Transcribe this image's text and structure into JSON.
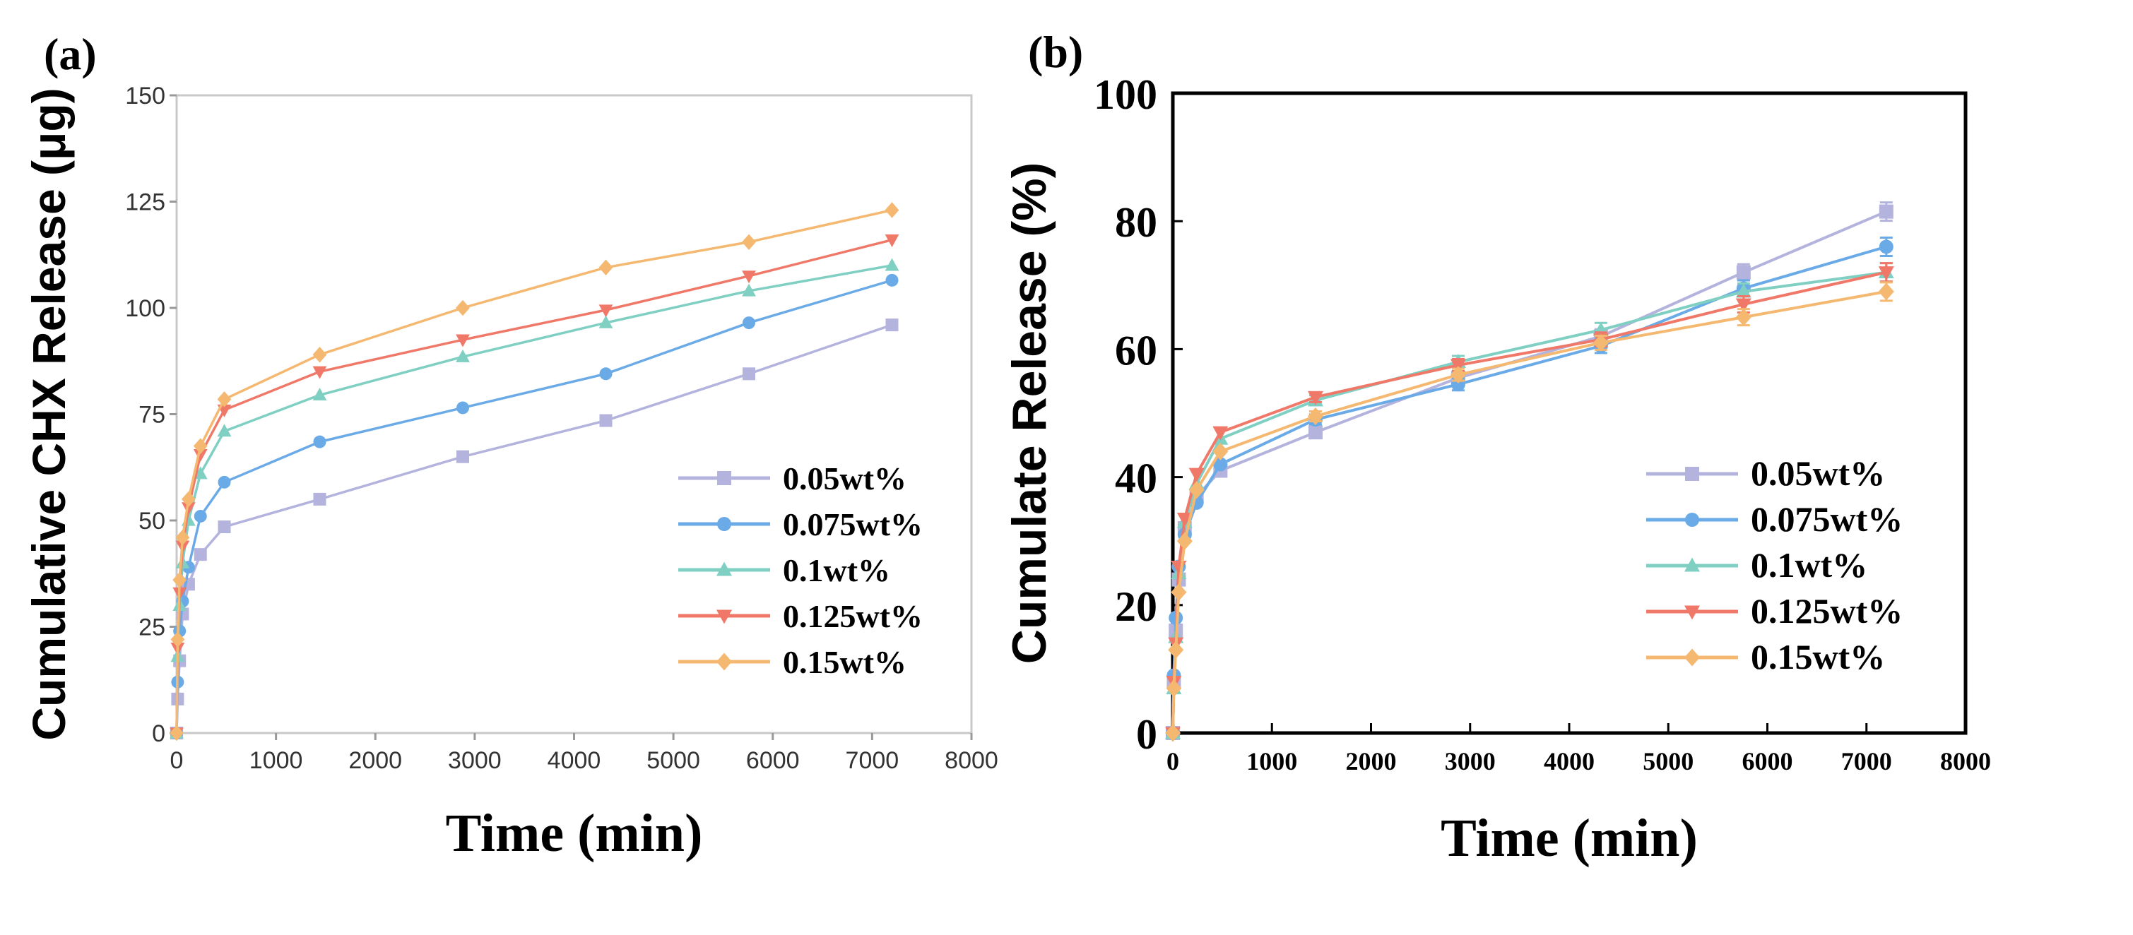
{
  "chart_data": [
    {
      "type": "line",
      "panel_label": "(a)",
      "title": "",
      "xlabel": "Time (min)",
      "ylabel": "Cumulative CHX Release (μg)",
      "xlim": [
        0,
        8000
      ],
      "ylim": [
        0,
        150
      ],
      "xticks": [
        0,
        1000,
        2000,
        3000,
        4000,
        5000,
        6000,
        7000,
        8000
      ],
      "yticks": [
        0,
        25,
        50,
        75,
        100,
        125,
        150
      ],
      "x": [
        0,
        10,
        30,
        60,
        120,
        240,
        480,
        1440,
        2880,
        4320,
        5760,
        7200
      ],
      "legend_position": "bottom-right",
      "series": [
        {
          "name": "0.05wt%",
          "color": "#b3b3dd",
          "marker": "square",
          "values": [
            0,
            8,
            17,
            28,
            35,
            42,
            48.5,
            55,
            65,
            73.5,
            84.5,
            96
          ]
        },
        {
          "name": "0.075wt%",
          "color": "#6aaae6",
          "marker": "circle",
          "values": [
            0,
            12,
            24,
            31,
            39,
            51,
            59,
            68.5,
            76.5,
            84.5,
            96.5,
            106.5
          ]
        },
        {
          "name": "0.1wt%",
          "color": "#7fcfc3",
          "marker": "triangle-up",
          "values": [
            0,
            18,
            30,
            40,
            50,
            61,
            71,
            79.5,
            88.5,
            96.5,
            104,
            110
          ]
        },
        {
          "name": "0.125wt%",
          "color": "#f07868",
          "marker": "triangle-down",
          "values": [
            0,
            20,
            33,
            44,
            53,
            65.5,
            76,
            85,
            92.5,
            99.5,
            107.5,
            116
          ]
        },
        {
          "name": "0.15wt%",
          "color": "#f5b870",
          "marker": "diamond",
          "values": [
            0,
            22,
            36,
            46,
            55,
            67.5,
            78.5,
            89,
            100,
            109.5,
            115.5,
            123
          ]
        }
      ]
    },
    {
      "type": "line",
      "panel_label": "(b)",
      "title": "",
      "xlabel": "Time (min)",
      "ylabel": "Cumulate Release (%)",
      "xlim": [
        0,
        8000
      ],
      "ylim": [
        0,
        100
      ],
      "xticks": [
        0,
        1000,
        2000,
        3000,
        4000,
        5000,
        6000,
        7000,
        8000
      ],
      "yticks": [
        0,
        20,
        40,
        60,
        80,
        100
      ],
      "x": [
        0,
        10,
        30,
        60,
        120,
        240,
        480,
        1440,
        2880,
        4320,
        5760,
        7200
      ],
      "legend_position": "bottom-right",
      "series": [
        {
          "name": "0.05wt%",
          "color": "#b3b3dd",
          "marker": "square",
          "values": [
            0,
            8,
            16,
            24,
            32,
            37,
            41,
            47,
            55.5,
            62,
            72,
            81.5
          ]
        },
        {
          "name": "0.075wt%",
          "color": "#6aaae6",
          "marker": "circle",
          "values": [
            0,
            9,
            18,
            26,
            31,
            36,
            42,
            49,
            54.5,
            60.5,
            69.5,
            76
          ]
        },
        {
          "name": "0.1wt%",
          "color": "#7fcfc3",
          "marker": "triangle-up",
          "values": [
            0,
            7,
            15,
            25,
            33,
            39,
            46,
            52,
            58,
            63,
            69,
            72
          ]
        },
        {
          "name": "0.125wt%",
          "color": "#f07868",
          "marker": "triangle-down",
          "values": [
            0,
            8,
            14,
            26,
            33.5,
            40.5,
            47,
            52.5,
            57.5,
            61.5,
            67,
            72
          ]
        },
        {
          "name": "0.15wt%",
          "color": "#f5b870",
          "marker": "diamond",
          "values": [
            0,
            7,
            13,
            22,
            30,
            38,
            44,
            49.5,
            56,
            61,
            65,
            69
          ]
        }
      ]
    }
  ]
}
